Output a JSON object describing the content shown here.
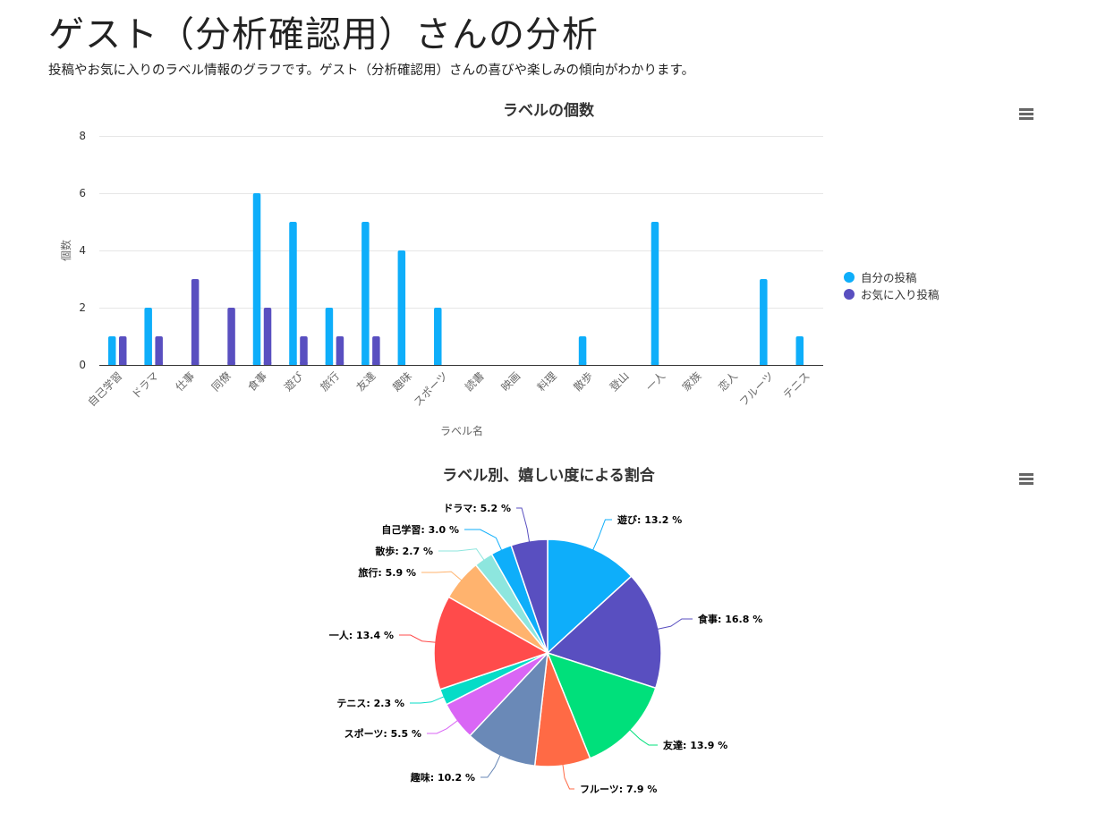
{
  "header": {
    "title": "ゲスト（分析確認用）さんの分析",
    "description": "投稿やお気に入りのラベル情報のグラフです。ゲスト（分析確認用）さんの喜びや楽しみの傾向がわかります。"
  },
  "colors": {
    "own_posts": "#0eaefa",
    "favorite_posts": "#594fc0",
    "grid": "#e6e6e6",
    "axis": "#333333"
  },
  "chart_data": [
    {
      "type": "bar",
      "title": "ラベルの個数",
      "xlabel": "ラベル名",
      "ylabel": "個数",
      "ylim": [
        0,
        8
      ],
      "yticks": [
        0,
        2,
        4,
        6,
        8
      ],
      "grid": true,
      "legend_position": "right",
      "categories": [
        "自己学習",
        "ドラマ",
        "仕事",
        "同僚",
        "食事",
        "遊び",
        "旅行",
        "友達",
        "趣味",
        "スポーツ",
        "読書",
        "映画",
        "料理",
        "散歩",
        "登山",
        "一人",
        "家族",
        "恋人",
        "フルーツ",
        "テニス"
      ],
      "series": [
        {
          "name": "自分の投稿",
          "color": "#0eaefa",
          "values": [
            1,
            2,
            0,
            0,
            6,
            5,
            2,
            5,
            4,
            2,
            0,
            0,
            0,
            1,
            0,
            5,
            0,
            0,
            3,
            1
          ]
        },
        {
          "name": "お気に入り投稿",
          "color": "#594fc0",
          "values": [
            1,
            1,
            3,
            2,
            2,
            1,
            1,
            1,
            0,
            0,
            0,
            0,
            0,
            0,
            0,
            0,
            0,
            0,
            0,
            0
          ]
        }
      ]
    },
    {
      "type": "pie",
      "title": "ラベル別、嬉しい度による割合",
      "unit": "%",
      "slices": [
        {
          "label": "遊び",
          "value": 13.2,
          "color": "#0eaefa"
        },
        {
          "label": "食事",
          "value": 16.8,
          "color": "#594fc0"
        },
        {
          "label": "友達",
          "value": 13.9,
          "color": "#00e07b"
        },
        {
          "label": "フルーツ",
          "value": 7.9,
          "color": "#ff6a45"
        },
        {
          "label": "趣味",
          "value": 10.2,
          "color": "#6a89b7"
        },
        {
          "label": "スポーツ",
          "value": 5.5,
          "color": "#d966f5"
        },
        {
          "label": "テニス",
          "value": 2.3,
          "color": "#05dcc7"
        },
        {
          "label": "一人",
          "value": 13.4,
          "color": "#ff4b4b"
        },
        {
          "label": "旅行",
          "value": 5.9,
          "color": "#ffb36e"
        },
        {
          "label": "散歩",
          "value": 2.7,
          "color": "#8de6de"
        },
        {
          "label": "自己学習",
          "value": 3.0,
          "color": "#0eaefa"
        },
        {
          "label": "ドラマ",
          "value": 5.2,
          "color": "#594fc0"
        }
      ]
    }
  ],
  "menus": {
    "bar_menu_icon": "hamburger-menu",
    "pie_menu_icon": "hamburger-menu"
  }
}
